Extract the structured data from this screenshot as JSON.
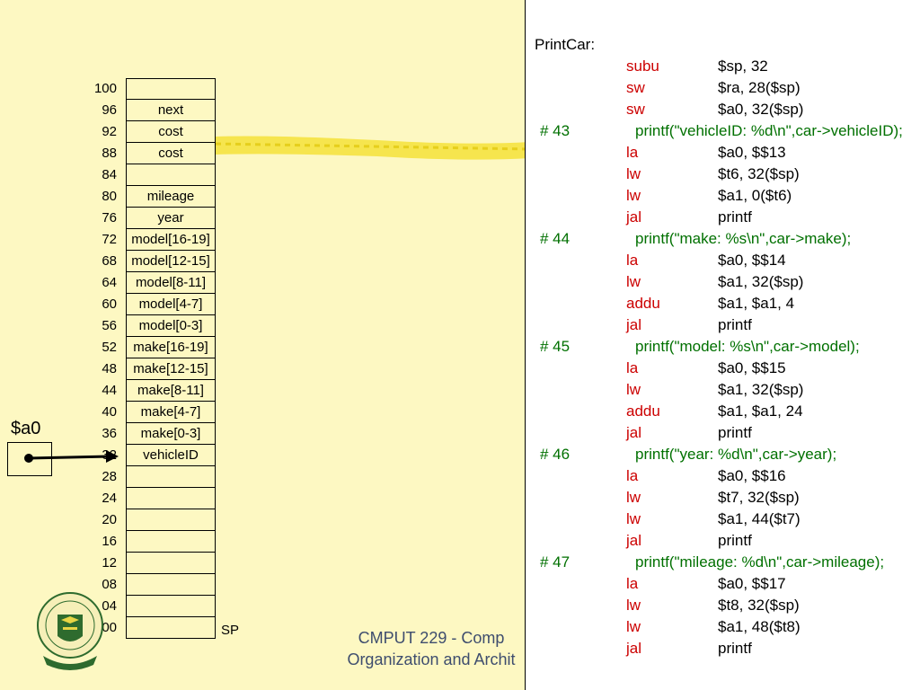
{
  "memory": {
    "rows": [
      {
        "addr": "100",
        "value": ""
      },
      {
        "addr": "96",
        "value": "next"
      },
      {
        "addr": "92",
        "value": "cost"
      },
      {
        "addr": "88",
        "value": "cost"
      },
      {
        "addr": "84",
        "value": ""
      },
      {
        "addr": "80",
        "value": "mileage"
      },
      {
        "addr": "76",
        "value": "year"
      },
      {
        "addr": "72",
        "value": "model[16-19]"
      },
      {
        "addr": "68",
        "value": "model[12-15]"
      },
      {
        "addr": "64",
        "value": "model[8-11]"
      },
      {
        "addr": "60",
        "value": "model[4-7]"
      },
      {
        "addr": "56",
        "value": "model[0-3]"
      },
      {
        "addr": "52",
        "value": "make[16-19]"
      },
      {
        "addr": "48",
        "value": "make[12-15]"
      },
      {
        "addr": "44",
        "value": "make[8-11]"
      },
      {
        "addr": "40",
        "value": "make[4-7]"
      },
      {
        "addr": "36",
        "value": "make[0-3]"
      },
      {
        "addr": "32",
        "value": "vehicleID"
      },
      {
        "addr": "28",
        "value": ""
      },
      {
        "addr": "24",
        "value": ""
      },
      {
        "addr": "20",
        "value": ""
      },
      {
        "addr": "16",
        "value": ""
      },
      {
        "addr": "12",
        "value": ""
      },
      {
        "addr": "08",
        "value": ""
      },
      {
        "addr": "04",
        "value": ""
      },
      {
        "addr": "00",
        "value": ""
      }
    ],
    "sp_label": "SP"
  },
  "register": {
    "label": "$a0"
  },
  "footer": {
    "line1": "CMPUT 229 - Comp",
    "line2": "Organization and Archit"
  },
  "colors": {
    "background": "#fdf8c2",
    "opcode": "#cc0000",
    "comment": "#007000",
    "highlight_arrow": "#f5e23a",
    "footer": "#3e4d6e",
    "logo": "#2e6b2e"
  },
  "code": [
    {
      "kind": "label",
      "text": "PrintCar:"
    },
    {
      "kind": "instr",
      "op": "subu",
      "args": "$sp, 32"
    },
    {
      "kind": "instr",
      "op": "sw",
      "args": "$ra, 28($sp)"
    },
    {
      "kind": "instr",
      "op": "sw",
      "args": "$a0, 32($sp)"
    },
    {
      "kind": "comment",
      "num": "#  43",
      "text": "printf(\"vehicleID: %d\\n\",car->vehicleID);"
    },
    {
      "kind": "instr",
      "op": "la",
      "args": "$a0, $$13"
    },
    {
      "kind": "instr",
      "op": "lw",
      "args": "$t6, 32($sp)"
    },
    {
      "kind": "instr",
      "op": "lw",
      "args": "$a1, 0($t6)"
    },
    {
      "kind": "instr",
      "op": "jal",
      "args": "printf"
    },
    {
      "kind": "comment",
      "num": "#  44",
      "text": "printf(\"make: %s\\n\",car->make);"
    },
    {
      "kind": "instr",
      "op": "la",
      "args": "$a0, $$14"
    },
    {
      "kind": "instr",
      "op": "lw",
      "args": "$a1, 32($sp)"
    },
    {
      "kind": "instr",
      "op": "addu",
      "args": "$a1, $a1, 4"
    },
    {
      "kind": "instr",
      "op": "jal",
      "args": "printf"
    },
    {
      "kind": "comment",
      "num": "#  45",
      "text": "printf(\"model: %s\\n\",car->model);"
    },
    {
      "kind": "instr",
      "op": "la",
      "args": "$a0, $$15"
    },
    {
      "kind": "instr",
      "op": "lw",
      "args": "$a1, 32($sp)"
    },
    {
      "kind": "instr",
      "op": "addu",
      "args": "$a1, $a1, 24"
    },
    {
      "kind": "instr",
      "op": "jal",
      "args": "printf"
    },
    {
      "kind": "comment",
      "num": "#  46",
      "text": "printf(\"year: %d\\n\",car->year);"
    },
    {
      "kind": "instr",
      "op": "la",
      "args": "$a0, $$16"
    },
    {
      "kind": "instr",
      "op": "lw",
      "args": "$t7, 32($sp)"
    },
    {
      "kind": "instr",
      "op": "lw",
      "args": "$a1, 44($t7)"
    },
    {
      "kind": "instr",
      "op": "jal",
      "args": "printf"
    },
    {
      "kind": "comment",
      "num": "#  47",
      "text": "printf(\"mileage: %d\\n\",car->mileage);"
    },
    {
      "kind": "instr",
      "op": "la",
      "args": "$a0, $$17"
    },
    {
      "kind": "instr",
      "op": "lw",
      "args": "$t8, 32($sp)"
    },
    {
      "kind": "instr",
      "op": "lw",
      "args": "$a1, 48($t8)"
    },
    {
      "kind": "instr",
      "op": "jal",
      "args": "printf"
    }
  ]
}
